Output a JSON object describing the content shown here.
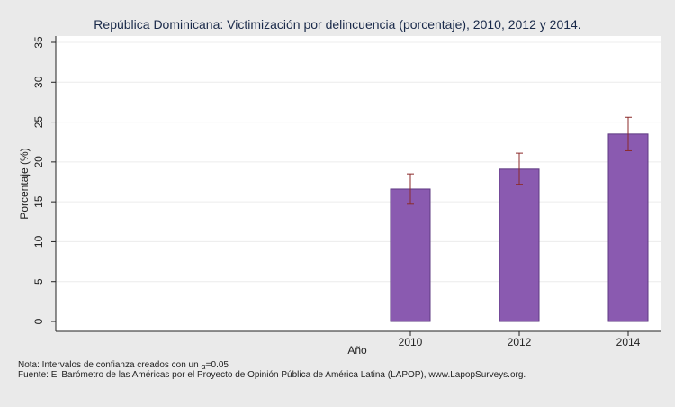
{
  "chart_data": {
    "type": "bar",
    "title": "República Dominicana: Victimización por delincuencia (porcentaje), 2010, 2012 y 2014.",
    "xlabel": "Año",
    "ylabel": "Porcentaje (%)",
    "categories": [
      "2010",
      "2012",
      "2014"
    ],
    "values": [
      16.6,
      19.1,
      23.5
    ],
    "ci_low": [
      14.7,
      17.2,
      21.4
    ],
    "ci_high": [
      18.5,
      21.1,
      25.6
    ],
    "ylim": [
      0,
      35
    ],
    "yticks": [
      0,
      5,
      10,
      15,
      20,
      25,
      30,
      35
    ],
    "grid": true,
    "bar_color": "#8a5ab0",
    "error_color": "#8b2a2a"
  },
  "notes": {
    "line1_prefix": "Nota: Intervalos de confianza creados con un ",
    "alpha_symbol": "α",
    "line1_suffix": "=0.05",
    "line2": "Fuente: El Barómetro de las Américas por el Proyecto de Opinión Pública de América Latina (LAPOP), www.LapopSurveys.org."
  }
}
